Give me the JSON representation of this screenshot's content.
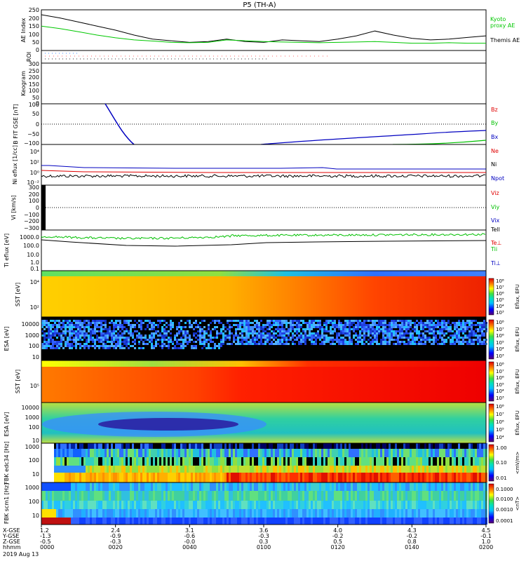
{
  "title": "P5 (TH-A)",
  "date": "2019 Aug 13",
  "colors": {
    "kyoto": "#00c800",
    "themis": "#000000",
    "red": "#e00000",
    "green": "#00c000",
    "blue": "#0000c0"
  },
  "chart_data": [
    {
      "panel": "ae",
      "type": "line",
      "ylabel": "AE Index",
      "ylim": [
        0,
        250
      ],
      "yticks": [
        "250",
        "200",
        "150",
        "100",
        "50",
        "0"
      ],
      "legend": [
        "Kyoto",
        "proxy AE",
        "Themis AE"
      ],
      "x_minutes": [
        0,
        5,
        10,
        15,
        20,
        25,
        30,
        35,
        40,
        45,
        50,
        55,
        60,
        65,
        70,
        75,
        80,
        85,
        90,
        95,
        100,
        105,
        110,
        115,
        120
      ],
      "series": [
        {
          "name": "Themis AE",
          "values": [
            220,
            200,
            175,
            150,
            125,
            95,
            70,
            60,
            50,
            55,
            70,
            55,
            50,
            65,
            60,
            55,
            70,
            90,
            120,
            95,
            75,
            65,
            70,
            80,
            90
          ]
        },
        {
          "name": "Kyoto proxy AE",
          "values": [
            150,
            135,
            115,
            95,
            78,
            65,
            58,
            50,
            48,
            50,
            65,
            60,
            55,
            52,
            50,
            48,
            50,
            52,
            55,
            50,
            45,
            45,
            48,
            45,
            45
          ]
        }
      ]
    },
    {
      "panel": "roi",
      "type": "line",
      "ylabel": "ROI"
    },
    {
      "panel": "keogram",
      "type": "line",
      "ylabel": "Keogram",
      "ylim": [
        0,
        300
      ],
      "yticks": [
        "300",
        "250",
        "200",
        "150",
        "100",
        "50",
        "0"
      ]
    },
    {
      "panel": "bfield",
      "type": "line",
      "ylabel": "B FIT GSE [nT]",
      "ylim": [
        -100,
        100
      ],
      "yticks": [
        "100",
        "50",
        "0",
        "−50",
        "−100"
      ],
      "legend": [
        "Bz",
        "By",
        "Bx"
      ]
    },
    {
      "panel": "density",
      "type": "line",
      "ylabel": "Ni eflux [1/cc]",
      "yticks": [
        "10⁴",
        "10²",
        "10⁰",
        "10⁻²"
      ],
      "legend": [
        "Ne",
        "Ni",
        "Npot"
      ]
    },
    {
      "panel": "velocity",
      "type": "line",
      "ylabel": "Vi [km/s]",
      "ylim": [
        -300,
        300
      ],
      "yticks": [
        "300",
        "200",
        "100",
        "0",
        "−100",
        "−200",
        "−300"
      ],
      "legend": [
        "Viz",
        "Viy",
        "Vix"
      ]
    },
    {
      "panel": "temperature",
      "type": "line",
      "ylabel": "Ti eflux [eV]",
      "yticks": [
        "1000.0",
        "100.0",
        "10.0",
        "1.0",
        "0.1"
      ],
      "legend": [
        "Tell",
        "Te⊥",
        "Tii",
        "Ti⊥"
      ]
    },
    {
      "panel": "sst_e",
      "type": "heatmap",
      "ylabel": "SST [eV]",
      "yticks": [
        "10⁴",
        "10²"
      ],
      "cbar_label": "Eflux, EFU",
      "cbar_ticks": [
        "10⁸",
        "10⁷",
        "10⁶",
        "10⁵",
        "10⁴",
        "10³"
      ]
    },
    {
      "panel": "esa_e",
      "type": "heatmap",
      "ylabel": "ESA [eV]",
      "yticks": [
        "10000",
        "1000",
        "100",
        "10"
      ],
      "cbar_label": "Eflux, EFU",
      "cbar_ticks": [
        "10⁸",
        "10⁷",
        "10⁶",
        "10⁵",
        "10⁴",
        "10³"
      ]
    },
    {
      "panel": "sst_i",
      "type": "heatmap",
      "ylabel": "SST [eV]",
      "yticks": [
        "10⁵"
      ],
      "cbar_label": "Eflux, EFU",
      "cbar_ticks": [
        "10⁸",
        "10⁷",
        "10⁶",
        "10⁵",
        "10⁴",
        "10³"
      ]
    },
    {
      "panel": "esa_i",
      "type": "heatmap",
      "ylabel": "ESA [eV]",
      "yticks": [
        "10000",
        "1000",
        "100",
        "10"
      ],
      "cbar_label": "Eflux, EFU",
      "cbar_ticks": [
        "10⁸",
        "10⁷",
        "10⁶",
        "10⁵",
        "10⁴"
      ]
    },
    {
      "panel": "fbk_e",
      "type": "heatmap",
      "ylabel": "FBK edc34 [Hz]",
      "yticks": [
        "1000",
        "100",
        "10"
      ],
      "cbar_label": "<mV/m>",
      "cbar_ticks": [
        "1.00",
        "0.10",
        "0.01"
      ]
    },
    {
      "panel": "fbk_b",
      "type": "heatmap",
      "ylabel": "FBK scm1 [Hz]",
      "yticks": [
        "1000",
        "100",
        "10"
      ],
      "cbar_label": "<nT>",
      "cbar_ticks": [
        "0.1000",
        "0.0100",
        "0.0010",
        "0.0001"
      ]
    }
  ],
  "xaxis": {
    "row_labels": [
      "X-GSE",
      "Y-GSE",
      "Z-GSE",
      "hhmm"
    ],
    "ticks": [
      {
        "minute": 0,
        "vals": [
          "1.2",
          "-1.3",
          "-0.5",
          "0000"
        ]
      },
      {
        "minute": 20,
        "vals": [
          "2.4",
          "-0.9",
          "-0.3",
          "0020"
        ]
      },
      {
        "minute": 40,
        "vals": [
          "3.1",
          "-0.6",
          "-0.0",
          "0040"
        ]
      },
      {
        "minute": 60,
        "vals": [
          "3.6",
          "-0.3",
          "0.3",
          "0100"
        ]
      },
      {
        "minute": 80,
        "vals": [
          "4.0",
          "-0.2",
          "0.5",
          "0120"
        ]
      },
      {
        "minute": 100,
        "vals": [
          "4.3",
          "-0.2",
          "0.8",
          "0140"
        ]
      },
      {
        "minute": 120,
        "vals": [
          "4.5",
          "-0.1",
          "1.0",
          "0200"
        ]
      }
    ]
  }
}
